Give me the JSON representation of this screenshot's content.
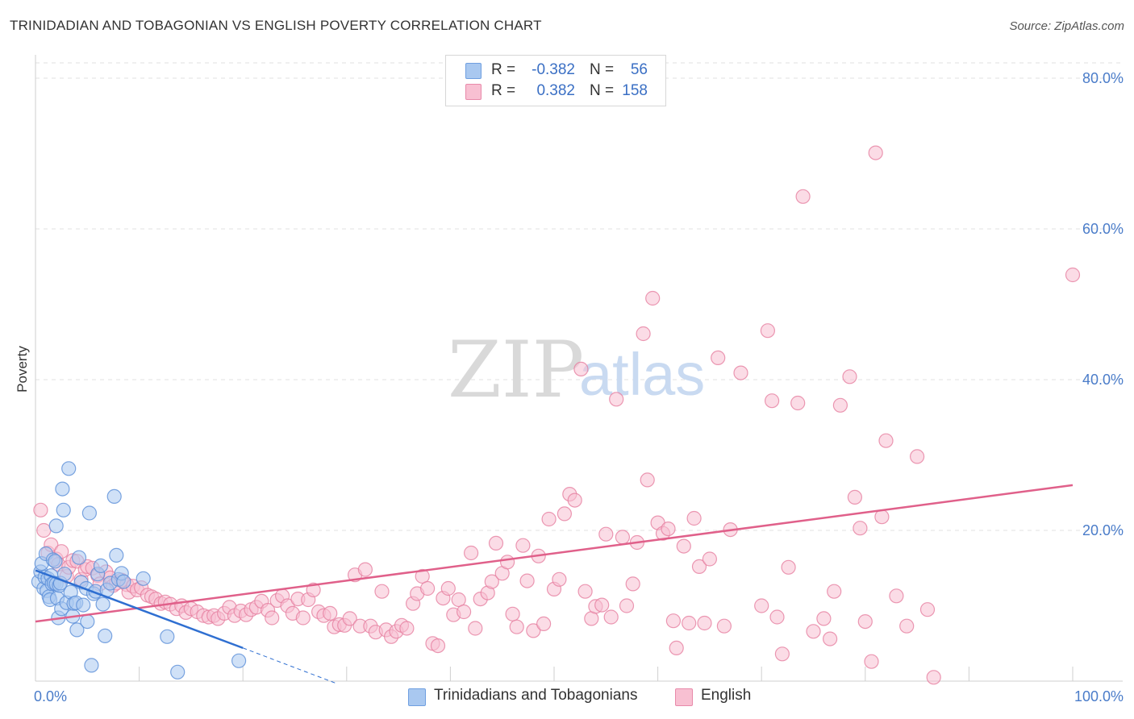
{
  "header": {
    "title": "TRINIDADIAN AND TOBAGONIAN VS ENGLISH POVERTY CORRELATION CHART",
    "source": "Source: ZipAtlas.com"
  },
  "legend": {
    "rows": [
      {
        "r_label": "R =",
        "r_value": "-0.382",
        "n_label": "N =",
        "n_value": "56",
        "color": "#a9c8f0",
        "border": "#6f9fe0"
      },
      {
        "r_label": "R =",
        "r_value": "0.382",
        "n_label": "N =",
        "n_value": "158",
        "color": "#f8c0d2",
        "border": "#e88aaa"
      }
    ]
  },
  "bottom_legend": {
    "series1": "Trinidadians and Tobagonians",
    "series2": "English"
  },
  "watermark": {
    "part1": "ZIP",
    "part2": "atlas"
  },
  "chart_data": {
    "type": "scatter",
    "title": "TRINIDADIAN AND TOBAGONIAN VS ENGLISH POVERTY CORRELATION CHART",
    "xlabel": "",
    "ylabel": "Poverty",
    "xlim": [
      0,
      100
    ],
    "ylim": [
      0,
      84
    ],
    "x_tick_labels": [
      "0.0%",
      "100.0%"
    ],
    "y_ticks": [
      20,
      40,
      60,
      80
    ],
    "y_tick_labels": [
      "20.0%",
      "40.0%",
      "60.0%",
      "80.0%"
    ],
    "grid": "horizontal dashed",
    "series": [
      {
        "name": "Trinidadians and Tobagonians",
        "color": "#5b8fd8",
        "fill": "#a9c8f0",
        "r": -0.382,
        "n": 56,
        "trend": {
          "x0": 0,
          "y0": 14.7,
          "x1": 20,
          "y1": 4.4,
          "x_dash_end": 29,
          "y_dash_end": -0.3
        },
        "points": [
          [
            0.3,
            13.2
          ],
          [
            0.5,
            14.5
          ],
          [
            0.6,
            15.6
          ],
          [
            0.8,
            12.3
          ],
          [
            0.9,
            13.8
          ],
          [
            1.0,
            16.9
          ],
          [
            1.1,
            12.0
          ],
          [
            1.2,
            13.6
          ],
          [
            1.3,
            11.2
          ],
          [
            1.4,
            10.8
          ],
          [
            1.5,
            14.0
          ],
          [
            1.6,
            12.9
          ],
          [
            1.7,
            16.1
          ],
          [
            1.8,
            13.0
          ],
          [
            1.9,
            15.9
          ],
          [
            2.0,
            12.9
          ],
          [
            2.1,
            11.0
          ],
          [
            2.2,
            8.4
          ],
          [
            2.3,
            12.7
          ],
          [
            2.4,
            13.0
          ],
          [
            2.5,
            9.6
          ],
          [
            2.6,
            25.5
          ],
          [
            2.7,
            22.7
          ],
          [
            2.8,
            14.2
          ],
          [
            3.0,
            10.4
          ],
          [
            3.2,
            28.2
          ],
          [
            3.4,
            11.8
          ],
          [
            3.6,
            8.6
          ],
          [
            3.7,
            10.3
          ],
          [
            3.9,
            10.4
          ],
          [
            4.0,
            6.8
          ],
          [
            4.2,
            16.4
          ],
          [
            4.4,
            13.1
          ],
          [
            4.6,
            10.1
          ],
          [
            4.9,
            12.3
          ],
          [
            5.0,
            7.9
          ],
          [
            5.2,
            22.3
          ],
          [
            5.4,
            2.1
          ],
          [
            5.6,
            11.6
          ],
          [
            5.8,
            11.9
          ],
          [
            6.0,
            14.2
          ],
          [
            6.3,
            15.3
          ],
          [
            6.5,
            10.2
          ],
          [
            6.7,
            6.0
          ],
          [
            6.9,
            12.1
          ],
          [
            7.2,
            13.0
          ],
          [
            7.6,
            24.5
          ],
          [
            7.8,
            16.7
          ],
          [
            8.0,
            13.5
          ],
          [
            8.3,
            14.3
          ],
          [
            8.5,
            13.2
          ],
          [
            2.0,
            20.6
          ],
          [
            10.4,
            13.6
          ],
          [
            12.7,
            5.9
          ],
          [
            13.7,
            1.2
          ],
          [
            19.6,
            2.7
          ]
        ]
      },
      {
        "name": "English",
        "color": "#e67fa0",
        "fill": "#f8c0d2",
        "r": 0.382,
        "n": 158,
        "trend": {
          "x0": 0,
          "y0": 7.9,
          "x1": 100,
          "y1": 26.0
        },
        "points": [
          [
            0.5,
            22.7
          ],
          [
            0.8,
            20.0
          ],
          [
            1.2,
            17.0
          ],
          [
            1.5,
            18.1
          ],
          [
            2.0,
            16.2
          ],
          [
            2.2,
            15.5
          ],
          [
            2.5,
            17.2
          ],
          [
            3.0,
            13.9
          ],
          [
            3.2,
            15.1
          ],
          [
            3.6,
            16.0
          ],
          [
            4.0,
            15.9
          ],
          [
            4.4,
            13.5
          ],
          [
            4.8,
            14.8
          ],
          [
            5.0,
            15.2
          ],
          [
            5.5,
            15.0
          ],
          [
            6.0,
            14.0
          ],
          [
            6.2,
            12.9
          ],
          [
            6.8,
            14.5
          ],
          [
            7.2,
            13.7
          ],
          [
            7.5,
            12.7
          ],
          [
            7.8,
            13.0
          ],
          [
            8.3,
            13.4
          ],
          [
            8.8,
            12.8
          ],
          [
            9.0,
            11.8
          ],
          [
            9.4,
            12.6
          ],
          [
            9.8,
            12.1
          ],
          [
            10.2,
            12.4
          ],
          [
            10.8,
            11.4
          ],
          [
            11.2,
            11.2
          ],
          [
            11.6,
            10.9
          ],
          [
            12.1,
            10.3
          ],
          [
            12.5,
            10.5
          ],
          [
            13.0,
            10.2
          ],
          [
            13.6,
            9.6
          ],
          [
            14.1,
            10.0
          ],
          [
            14.5,
            9.1
          ],
          [
            15.0,
            9.6
          ],
          [
            15.6,
            9.2
          ],
          [
            16.2,
            8.7
          ],
          [
            16.7,
            8.5
          ],
          [
            17.2,
            8.7
          ],
          [
            17.6,
            8.3
          ],
          [
            18.2,
            9.0
          ],
          [
            18.7,
            9.8
          ],
          [
            19.2,
            8.7
          ],
          [
            19.8,
            9.3
          ],
          [
            20.3,
            8.8
          ],
          [
            20.8,
            9.5
          ],
          [
            21.3,
            9.8
          ],
          [
            21.8,
            10.6
          ],
          [
            22.4,
            9.4
          ],
          [
            22.8,
            8.4
          ],
          [
            23.3,
            10.7
          ],
          [
            23.8,
            11.3
          ],
          [
            24.3,
            10.0
          ],
          [
            24.8,
            9.0
          ],
          [
            25.3,
            10.9
          ],
          [
            25.8,
            8.4
          ],
          [
            26.3,
            10.8
          ],
          [
            26.8,
            12.1
          ],
          [
            27.3,
            9.2
          ],
          [
            27.8,
            8.7
          ],
          [
            28.4,
            9.0
          ],
          [
            28.8,
            7.2
          ],
          [
            29.3,
            7.5
          ],
          [
            29.8,
            7.4
          ],
          [
            30.3,
            8.3
          ],
          [
            30.8,
            14.1
          ],
          [
            31.3,
            7.3
          ],
          [
            31.8,
            14.8
          ],
          [
            32.3,
            7.3
          ],
          [
            32.8,
            6.5
          ],
          [
            33.4,
            11.9
          ],
          [
            33.8,
            6.8
          ],
          [
            34.3,
            5.9
          ],
          [
            34.8,
            6.6
          ],
          [
            35.3,
            7.4
          ],
          [
            35.8,
            7.0
          ],
          [
            36.4,
            10.3
          ],
          [
            36.8,
            11.6
          ],
          [
            37.3,
            13.9
          ],
          [
            37.8,
            12.3
          ],
          [
            38.3,
            5.0
          ],
          [
            38.8,
            4.7
          ],
          [
            39.3,
            11.0
          ],
          [
            39.8,
            12.3
          ],
          [
            40.3,
            8.8
          ],
          [
            40.8,
            10.8
          ],
          [
            41.3,
            9.2
          ],
          [
            42.0,
            17.0
          ],
          [
            42.4,
            7.0
          ],
          [
            42.9,
            10.9
          ],
          [
            43.6,
            11.7
          ],
          [
            44.0,
            13.2
          ],
          [
            44.4,
            18.3
          ],
          [
            45.0,
            14.3
          ],
          [
            45.5,
            15.8
          ],
          [
            46.0,
            8.9
          ],
          [
            46.4,
            7.2
          ],
          [
            47.0,
            18.0
          ],
          [
            47.4,
            13.3
          ],
          [
            48.0,
            6.7
          ],
          [
            48.5,
            16.6
          ],
          [
            49.0,
            7.6
          ],
          [
            49.5,
            21.5
          ],
          [
            50.0,
            12.2
          ],
          [
            50.5,
            13.5
          ],
          [
            51.0,
            22.2
          ],
          [
            51.5,
            24.8
          ],
          [
            52.0,
            24.0
          ],
          [
            52.6,
            41.4
          ],
          [
            53.0,
            11.9
          ],
          [
            53.6,
            8.3
          ],
          [
            54.0,
            9.9
          ],
          [
            54.6,
            10.1
          ],
          [
            55.0,
            19.5
          ],
          [
            55.5,
            8.5
          ],
          [
            56.0,
            37.4
          ],
          [
            56.6,
            19.1
          ],
          [
            57.0,
            10.0
          ],
          [
            57.6,
            12.9
          ],
          [
            58.0,
            18.4
          ],
          [
            58.6,
            46.1
          ],
          [
            59.0,
            26.7
          ],
          [
            59.5,
            50.8
          ],
          [
            60.0,
            21.0
          ],
          [
            60.5,
            19.6
          ],
          [
            61.0,
            20.2
          ],
          [
            61.5,
            8.0
          ],
          [
            61.8,
            4.4
          ],
          [
            62.5,
            17.9
          ],
          [
            63.0,
            7.7
          ],
          [
            63.5,
            21.6
          ],
          [
            64.0,
            15.2
          ],
          [
            64.5,
            7.7
          ],
          [
            65.0,
            16.2
          ],
          [
            65.8,
            42.9
          ],
          [
            66.4,
            7.3
          ],
          [
            67.0,
            20.1
          ],
          [
            68.0,
            40.9
          ],
          [
            70.0,
            10.0
          ],
          [
            70.6,
            46.5
          ],
          [
            71.0,
            37.2
          ],
          [
            71.5,
            8.5
          ],
          [
            72.0,
            3.6
          ],
          [
            72.6,
            15.1
          ],
          [
            73.5,
            36.9
          ],
          [
            74.0,
            64.3
          ],
          [
            75.0,
            6.6
          ],
          [
            76.0,
            8.3
          ],
          [
            76.6,
            5.6
          ],
          [
            77.0,
            11.9
          ],
          [
            77.6,
            36.6
          ],
          [
            78.5,
            40.4
          ],
          [
            79.0,
            24.4
          ],
          [
            79.5,
            20.3
          ],
          [
            80.0,
            7.9
          ],
          [
            80.6,
            2.6
          ],
          [
            81.0,
            70.1
          ],
          [
            81.6,
            21.8
          ],
          [
            82.0,
            31.9
          ],
          [
            83.0,
            11.3
          ],
          [
            84.0,
            7.3
          ],
          [
            85.0,
            29.8
          ],
          [
            86.0,
            9.5
          ],
          [
            86.6,
            0.5
          ],
          [
            100.0,
            53.9
          ]
        ]
      }
    ]
  }
}
